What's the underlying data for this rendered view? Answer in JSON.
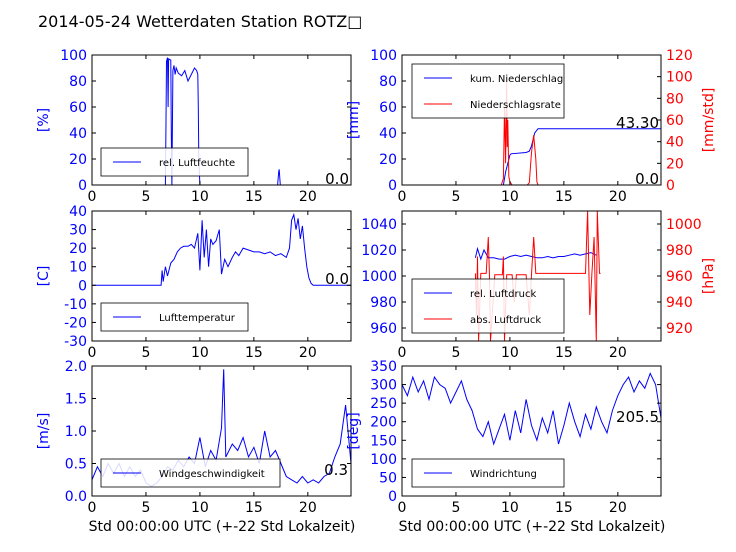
{
  "figure": {
    "title": "2014-05-24 Wetterdaten Station ROTZ□",
    "xlabel": "Std 00:00:00 UTC (+-22 Std Lokalzeit)"
  },
  "colors": {
    "primary": "#0000ff",
    "secondary": "#ff0000",
    "axis": "#000000",
    "legend_line": "#000000"
  },
  "chart_data": [
    {
      "id": "humidity",
      "type": "line",
      "ylabel": "[%]",
      "ylabel_color": "#0000ff",
      "xlim": [
        0,
        24
      ],
      "ylim": [
        0,
        100
      ],
      "xticks": [
        0,
        5,
        10,
        15,
        20
      ],
      "yticks": [
        0,
        20,
        40,
        60,
        80,
        100
      ],
      "annotation": "0.0",
      "series": [
        {
          "name": "rel. Luftfeuchte",
          "color": "#0000ff",
          "x": [
            0,
            6.8,
            6.85,
            6.9,
            7.0,
            7.05,
            7.1,
            7.3,
            7.35,
            7.4,
            7.5,
            7.6,
            7.7,
            7.8,
            8.0,
            8.3,
            8.6,
            8.9,
            9.2,
            9.5,
            9.7,
            9.8,
            9.85,
            9.9,
            10.0,
            10.1,
            17.2,
            17.3,
            17.35,
            17.45,
            24
          ],
          "y": [
            0,
            0,
            40,
            95,
            98,
            60,
            97,
            96,
            40,
            0,
            88,
            92,
            85,
            90,
            86,
            84,
            88,
            80,
            85,
            90,
            88,
            85,
            60,
            20,
            0,
            0,
            0,
            10,
            12,
            0,
            0
          ]
        }
      ]
    },
    {
      "id": "precipitation",
      "type": "line",
      "ylabel": "[mm]",
      "ylabel_color": "#0000ff",
      "ylabel_right": "[mm/std]",
      "ylabel_right_color": "#ff0000",
      "xlim": [
        0,
        24
      ],
      "ylim": [
        0,
        100
      ],
      "ylim_right": [
        0,
        120
      ],
      "xticks": [
        0,
        5,
        10,
        15,
        20
      ],
      "yticks": [
        0,
        20,
        40,
        60,
        80,
        100
      ],
      "yticks_right": [
        0,
        20,
        40,
        60,
        80,
        100,
        120
      ],
      "annotation": "43.30",
      "annotation2": "0.0",
      "series": [
        {
          "name": "kum. Niederschlag",
          "color": "#0000ff",
          "axis": "left",
          "x": [
            0,
            9.4,
            9.6,
            10.0,
            10.1,
            11.5,
            11.8,
            12.0,
            12.3,
            12.6,
            24
          ],
          "y": [
            0,
            0,
            10,
            23,
            24,
            25,
            26,
            30,
            40,
            43.3,
            43.3
          ]
        },
        {
          "name": "Niederschlagsrate",
          "color": "#ff0000",
          "axis": "right",
          "x": [
            0,
            9.2,
            9.4,
            9.5,
            9.6,
            9.7,
            9.75,
            9.8,
            9.9,
            10.0,
            10.2,
            11.6,
            11.8,
            12.0,
            12.2,
            12.4,
            12.5,
            12.6,
            24
          ],
          "y": [
            0,
            0,
            6,
            72,
            20,
            100,
            35,
            60,
            8,
            3,
            0,
            0,
            2,
            30,
            46,
            24,
            3,
            0,
            0
          ]
        }
      ]
    },
    {
      "id": "temperature",
      "type": "line",
      "ylabel": "[C]",
      "ylabel_color": "#0000ff",
      "xlim": [
        0,
        24
      ],
      "ylim": [
        -30,
        40
      ],
      "xticks": [
        0,
        5,
        10,
        15,
        20
      ],
      "yticks": [
        -30,
        -20,
        -10,
        0,
        10,
        20,
        30,
        40
      ],
      "annotation": "0.0",
      "series": [
        {
          "name": "Lufttemperatur",
          "color": "#0000ff",
          "x": [
            0,
            6.4,
            6.5,
            6.6,
            6.8,
            7.0,
            7.3,
            7.6,
            7.9,
            8.2,
            8.5,
            8.9,
            9.2,
            9.5,
            9.8,
            10.0,
            10.2,
            10.4,
            10.6,
            10.8,
            11.0,
            11.2,
            11.5,
            11.8,
            12.0,
            12.3,
            12.6,
            13.0,
            13.3,
            13.6,
            14.0,
            14.5,
            15.0,
            15.5,
            16.0,
            16.5,
            17.0,
            17.5,
            18.0,
            18.3,
            18.5,
            18.7,
            18.9,
            19.1,
            19.3,
            19.5,
            19.7,
            19.9,
            20.1,
            20.3,
            20.5,
            24
          ],
          "y": [
            0,
            0,
            8,
            2,
            10,
            5,
            12,
            14,
            18,
            20,
            21,
            21,
            22,
            20,
            28,
            8,
            35,
            15,
            30,
            10,
            25,
            22,
            24,
            30,
            6,
            14,
            10,
            15,
            18,
            16,
            20,
            19,
            18,
            18,
            17,
            18,
            16,
            17,
            15,
            20,
            35,
            38,
            30,
            36,
            25,
            32,
            20,
            10,
            4,
            1,
            0,
            0
          ]
        }
      ]
    },
    {
      "id": "pressure",
      "type": "line",
      "ylabel": "",
      "ylabel_right": "[hPa]",
      "ylabel_right_color": "#ff0000",
      "xlim": [
        0,
        24
      ],
      "ylim": [
        950,
        1050
      ],
      "ylim_right": [
        910,
        1010
      ],
      "xticks": [
        0,
        5,
        10,
        15,
        20
      ],
      "yticks": [
        960,
        980,
        1000,
        1020,
        1040
      ],
      "yticks_right": [
        920,
        940,
        960,
        980,
        1000
      ],
      "series": [
        {
          "name": "rel. Luftdruck",
          "color": "#0000ff",
          "axis": "left",
          "x": [
            6.8,
            7.0,
            7.3,
            7.6,
            8.0,
            8.5,
            9.0,
            9.5,
            10.0,
            10.5,
            11.0,
            11.5,
            12.0,
            12.5,
            13.0,
            13.5,
            14.0,
            14.5,
            15.0,
            15.5,
            16.0,
            16.5,
            17.0,
            17.5,
            18.0
          ],
          "y": [
            1014,
            1021,
            1013,
            1020,
            1014,
            1014,
            1013,
            1013,
            1015,
            1016,
            1015,
            1016,
            1015,
            1014,
            1014,
            1015,
            1014,
            1015,
            1015,
            1016,
            1017,
            1016,
            1017,
            1018,
            1016
          ]
        },
        {
          "name": "abs. Luftdruck",
          "color": "#ff0000",
          "axis": "right",
          "x": [
            6.8,
            6.9,
            7.0,
            7.1,
            7.3,
            7.5,
            7.8,
            8.0,
            8.1,
            8.2,
            8.6,
            9.0,
            9.3,
            9.4,
            9.5,
            9.7,
            10.0,
            10.2,
            10.4,
            10.6,
            11.0,
            11.5,
            11.8,
            12.0,
            12.2,
            12.4,
            12.6,
            13.0,
            14.0,
            15.0,
            15.5,
            16.0,
            16.5,
            17.0,
            17.2,
            17.4,
            17.6,
            17.8,
            18.0,
            18.1,
            18.3,
            18.4
          ],
          "y": [
            962,
            930,
            975,
            910,
            962,
            962,
            962,
            990,
            962,
            910,
            961,
            961,
            961,
            975,
            910,
            961,
            961,
            961,
            940,
            961,
            961,
            961,
            930,
            961,
            990,
            962,
            962,
            962,
            962,
            962,
            962,
            962,
            962,
            962,
            1010,
            930,
            962,
            990,
            910,
            1010,
            962,
            962
          ]
        }
      ]
    },
    {
      "id": "wind_speed",
      "type": "line",
      "ylabel": "[m/s]",
      "ylabel_color": "#0000ff",
      "xlim": [
        0,
        24
      ],
      "ylim": [
        0,
        2.0
      ],
      "xticks": [
        0,
        5,
        10,
        15,
        20
      ],
      "yticks": [
        0.0,
        0.5,
        1.0,
        1.5,
        2.0
      ],
      "annotation": "0.3",
      "series": [
        {
          "name": "Windgeschwindigkeit",
          "color": "#0000ff",
          "x": [
            0,
            0.5,
            1,
            1.5,
            2,
            2.5,
            3,
            3.5,
            4,
            4.5,
            5,
            5.5,
            6,
            6.5,
            7,
            7.5,
            8,
            8.5,
            9,
            9.5,
            10,
            10.5,
            11,
            11.5,
            12,
            12.2,
            12.4,
            13,
            13.5,
            14,
            14.5,
            15,
            15.5,
            16,
            16.5,
            17,
            17.5,
            18,
            18.5,
            19,
            19.5,
            20,
            20.5,
            21,
            21.5,
            22,
            22.5,
            23,
            23.5,
            24
          ],
          "y": [
            0.25,
            0.45,
            0.3,
            0.5,
            0.35,
            0.5,
            0.3,
            0.45,
            0.3,
            0.4,
            0.2,
            0.15,
            0.2,
            0.3,
            0.45,
            0.4,
            0.55,
            0.45,
            0.6,
            0.5,
            0.9,
            0.45,
            0.7,
            0.55,
            1.05,
            1.95,
            0.6,
            0.8,
            0.7,
            0.9,
            0.6,
            0.75,
            0.5,
            1.0,
            0.6,
            0.7,
            0.5,
            0.3,
            0.25,
            0.2,
            0.3,
            0.2,
            0.25,
            0.2,
            0.3,
            0.35,
            0.6,
            0.8,
            1.4,
            0.5
          ]
        }
      ]
    },
    {
      "id": "wind_direction",
      "type": "line",
      "ylabel": "[deg]",
      "ylabel_color": "#0000ff",
      "xlim": [
        0,
        24
      ],
      "ylim": [
        0,
        350
      ],
      "xticks": [
        0,
        5,
        10,
        15,
        20
      ],
      "yticks": [
        0,
        50,
        100,
        150,
        200,
        250,
        300,
        350
      ],
      "annotation": "205.5",
      "series": [
        {
          "name": "Windrichtung",
          "color": "#0000ff",
          "x": [
            0,
            0.5,
            1,
            1.5,
            2,
            2.5,
            3,
            3.5,
            4,
            4.5,
            5,
            5.5,
            6,
            6.5,
            7,
            7.5,
            8,
            8.5,
            9,
            9.5,
            10,
            10.5,
            11,
            11.5,
            12,
            12.5,
            13,
            13.5,
            14,
            14.5,
            15,
            15.5,
            16,
            16.5,
            17,
            17.5,
            18,
            18.5,
            19,
            19.5,
            20,
            20.5,
            21,
            21.5,
            22,
            22.5,
            23,
            23.5,
            24
          ],
          "y": [
            300,
            270,
            320,
            280,
            310,
            260,
            320,
            300,
            290,
            250,
            280,
            310,
            260,
            230,
            180,
            160,
            200,
            140,
            180,
            220,
            150,
            230,
            170,
            260,
            190,
            150,
            210,
            170,
            230,
            140,
            190,
            250,
            200,
            160,
            220,
            180,
            240,
            200,
            170,
            230,
            270,
            300,
            320,
            280,
            310,
            290,
            330,
            300,
            210
          ]
        }
      ]
    }
  ]
}
